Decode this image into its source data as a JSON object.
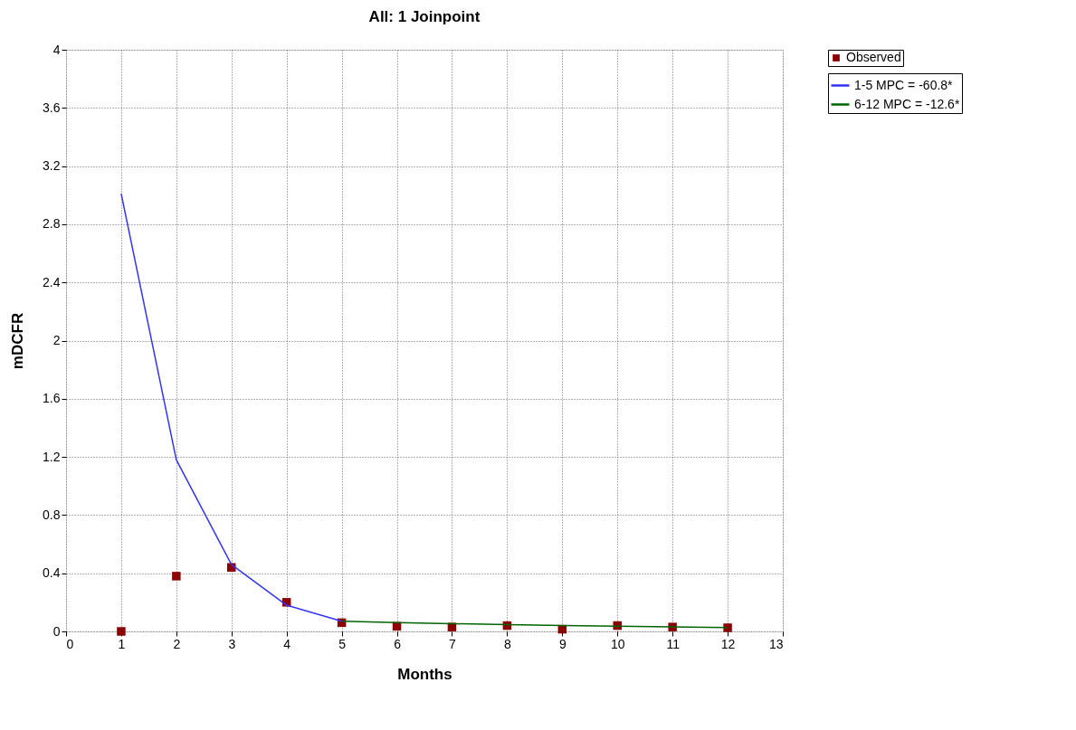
{
  "chart_data": {
    "type": "line",
    "title": "All: 1 Joinpoint",
    "xlabel": "Months",
    "ylabel": "mDCFR",
    "xlim": [
      0,
      13
    ],
    "xticks": [
      0,
      1,
      2,
      3,
      4,
      5,
      6,
      7,
      8,
      9,
      10,
      11,
      12,
      13
    ],
    "ylim": [
      0,
      4
    ],
    "yticks": [
      0,
      0.4,
      0.8,
      1.2,
      1.6,
      2,
      2.4,
      2.8,
      3.2,
      3.6,
      4
    ],
    "grid": true,
    "legend": "top right",
    "series": [
      {
        "name": "Observed",
        "type": "scatter",
        "marker": "square",
        "color": "#8b0000",
        "x": [
          1,
          2,
          3,
          4,
          5,
          6,
          7,
          8,
          9,
          10,
          11,
          12
        ],
        "values": [
          0.0,
          0.38,
          0.44,
          0.2,
          0.06,
          0.035,
          0.03,
          0.04,
          0.015,
          0.04,
          0.03,
          0.025
        ]
      },
      {
        "name": "1-5 MPC = -60.8*",
        "line_style": "solid",
        "color": "#3333ff",
        "x": [
          1,
          2,
          3,
          4,
          5
        ],
        "values": [
          3.01,
          1.18,
          0.46,
          0.18,
          0.07
        ]
      },
      {
        "name": "6-12 MPC = -12.6*",
        "line_style": "solid",
        "color": "#006400",
        "x": [
          5,
          6,
          7,
          8,
          9,
          10,
          11,
          12
        ],
        "values": [
          0.07,
          0.061,
          0.053,
          0.047,
          0.041,
          0.036,
          0.031,
          0.027
        ]
      }
    ]
  }
}
